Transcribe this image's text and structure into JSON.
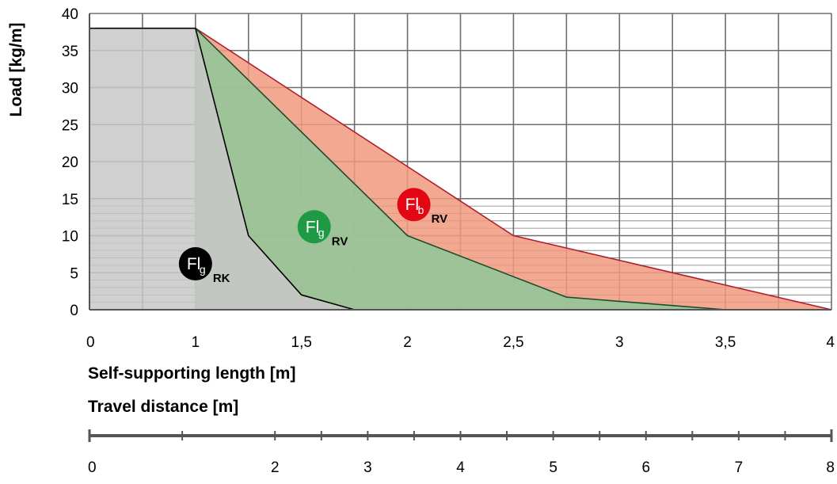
{
  "chart_data": [
    {
      "type": "area",
      "title": "",
      "xlabel": "Self-supporting length [m]",
      "ylabel": "Load [kg/m]",
      "xlim": [
        0.5,
        4
      ],
      "ylim": [
        0,
        40
      ],
      "x_ticks": [
        {
          "value": 0.5,
          "label": "0"
        },
        {
          "value": 1,
          "label": "1"
        },
        {
          "value": 1.5,
          "label": "1,5"
        },
        {
          "value": 2,
          "label": "2"
        },
        {
          "value": 2.5,
          "label": "2,5"
        },
        {
          "value": 3,
          "label": "3"
        },
        {
          "value": 3.5,
          "label": "3,5"
        },
        {
          "value": 4,
          "label": "4"
        }
      ],
      "y_ticks": [
        0,
        5,
        10,
        15,
        20,
        25,
        30,
        35,
        40
      ],
      "grid": true,
      "series": [
        {
          "id": "flb-rv",
          "color": "#f19a7e",
          "line_color": "#b01e2e",
          "x": [
            1,
            2.5,
            4
          ],
          "y": [
            38,
            10,
            0
          ]
        },
        {
          "id": "flg-rv",
          "color": "#8fc89a",
          "line_color": "#1d4d2a",
          "x": [
            1,
            2,
            2.75,
            3.5
          ],
          "y": [
            38,
            10,
            1.7,
            0
          ]
        },
        {
          "id": "flg-rk",
          "color": "#c8c8c8",
          "line_color": "#000000",
          "x": [
            0.5,
            1,
            1.25,
            1.5,
            1.75
          ],
          "y": [
            38,
            38,
            10,
            2,
            0
          ]
        }
      ],
      "badges": [
        {
          "main": "Fl",
          "sub": "b",
          "suffix": "RV",
          "color": "#e30613",
          "x": 2.03,
          "y": 14.2
        },
        {
          "main": "Fl",
          "sub": "g",
          "suffix": "RV",
          "color": "#1e9a45",
          "x": 1.56,
          "y": 11.2
        },
        {
          "main": "Fl",
          "sub": "g",
          "suffix": "RK",
          "color": "#000000",
          "x": 1.0,
          "y": 6.2
        }
      ]
    },
    {
      "type": "scale",
      "xlabel": "Travel distance [m]",
      "xlim": [
        0,
        8
      ],
      "ticks": [
        {
          "value": 0,
          "label": "0"
        },
        {
          "value": 2,
          "label": "2"
        },
        {
          "value": 3,
          "label": "3"
        },
        {
          "value": 4,
          "label": "4"
        },
        {
          "value": 5,
          "label": "5"
        },
        {
          "value": 6,
          "label": "6"
        },
        {
          "value": 7,
          "label": "7"
        },
        {
          "value": 8,
          "label": "8"
        }
      ],
      "minor_ticks": [
        1,
        2.5,
        3.5,
        4.5,
        5.5,
        6.5,
        7.5
      ]
    }
  ]
}
